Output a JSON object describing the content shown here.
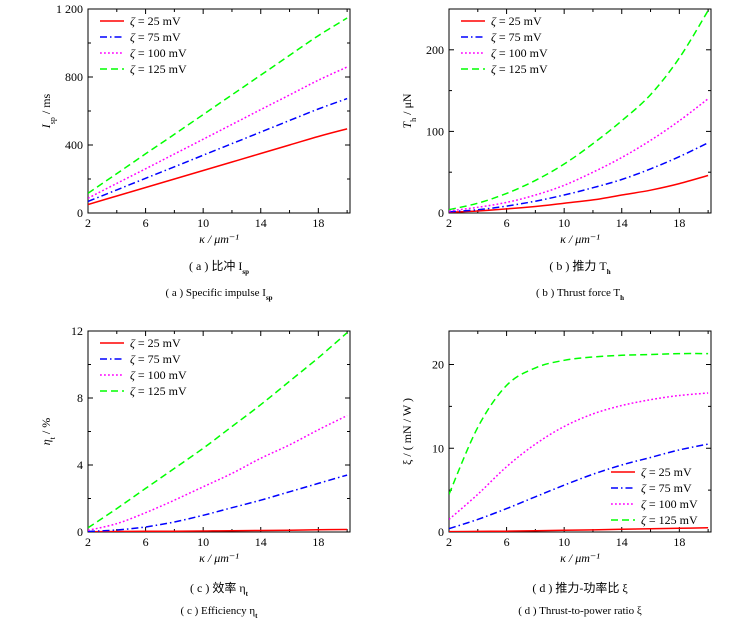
{
  "chart_data": [
    {
      "type": "line",
      "x": [
        2,
        4,
        6,
        8,
        10,
        12,
        14,
        16,
        18,
        20
      ],
      "xlim": [
        2,
        20.2
      ],
      "ylim": [
        0,
        1200
      ],
      "xticks": [
        "2",
        "6",
        "10",
        "14",
        "18"
      ],
      "yticks": [
        "0",
        "400",
        "800",
        "1 200"
      ],
      "xlabel": "κ / μm⁻¹",
      "ylabel": "I_sp / ms",
      "legend": "top-left",
      "grid": false,
      "caption_cn": "( a ) 比冲 I_sp",
      "caption_en": "( a ) Specific impulse I_sp",
      "series": [
        {
          "name": "ζ = 25 mV",
          "color": "#ff0000",
          "style": "solid",
          "values": [
            50,
            100,
            150,
            200,
            250,
            300,
            350,
            400,
            450,
            495
          ]
        },
        {
          "name": "ζ = 75 mV",
          "color": "#0000ff",
          "style": "dashdot",
          "values": [
            68,
            136,
            204,
            272,
            340,
            408,
            476,
            544,
            612,
            673
          ]
        },
        {
          "name": "ζ = 100 mV",
          "color": "#ff00ff",
          "style": "dotted",
          "values": [
            87,
            174,
            260,
            347,
            434,
            521,
            608,
            694,
            781,
            859
          ]
        },
        {
          "name": "ζ = 125 mV",
          "color": "#00ff00",
          "style": "dashed",
          "values": [
            116,
            232,
            348,
            463,
            579,
            695,
            811,
            927,
            1043,
            1147
          ]
        }
      ]
    },
    {
      "type": "line",
      "x": [
        2,
        4,
        6,
        8,
        10,
        12,
        14,
        16,
        18,
        20
      ],
      "xlim": [
        2,
        20.2
      ],
      "ylim": [
        0,
        250
      ],
      "xticks": [
        "2",
        "6",
        "10",
        "14",
        "18"
      ],
      "yticks": [
        "0",
        "100",
        "200"
      ],
      "xlabel": "κ / μm⁻¹",
      "ylabel": "T_h / μN",
      "legend": "top-left",
      "grid": false,
      "caption_cn": "( b ) 推力 T_h",
      "caption_en": "( b ) Thrust force T_h",
      "series": [
        {
          "name": "ζ = 25 mV",
          "color": "#ff0000",
          "style": "solid",
          "values": [
            1,
            2.5,
            5,
            8,
            12,
            16,
            22,
            28,
            36,
            46
          ]
        },
        {
          "name": "ζ = 75 mV",
          "color": "#0000ff",
          "style": "dashdot",
          "values": [
            1.5,
            4,
            8.5,
            14.5,
            22,
            31,
            41,
            54,
            69,
            86
          ]
        },
        {
          "name": "ζ = 100 mV",
          "color": "#ff00ff",
          "style": "dotted",
          "values": [
            2.5,
            7,
            13,
            22,
            34,
            50,
            68,
            89,
            113,
            140
          ]
        },
        {
          "name": "ζ = 125 mV",
          "color": "#00ff00",
          "style": "dashed",
          "values": [
            4,
            12,
            24,
            40,
            60,
            85,
            113,
            145,
            190,
            248
          ]
        }
      ]
    },
    {
      "type": "line",
      "x": [
        2,
        4,
        6,
        8,
        10,
        12,
        14,
        16,
        18,
        20
      ],
      "xlim": [
        2,
        20.2
      ],
      "ylim": [
        0,
        12
      ],
      "xticks": [
        "2",
        "6",
        "10",
        "14",
        "18"
      ],
      "yticks": [
        "0",
        "4",
        "8",
        "12"
      ],
      "xlabel": "κ / μm⁻¹",
      "ylabel": "η_t / %",
      "legend": "top-left",
      "grid": false,
      "caption_cn": "( c ) 效率 η_t",
      "caption_en": "( c ) Efficiency η_t",
      "series": [
        {
          "name": "ζ = 25 mV",
          "color": "#ff0000",
          "style": "solid",
          "values": [
            0.02,
            0.03,
            0.04,
            0.05,
            0.06,
            0.08,
            0.09,
            0.11,
            0.13,
            0.15
          ]
        },
        {
          "name": "ζ = 75 mV",
          "color": "#0000ff",
          "style": "dashdot",
          "values": [
            0.03,
            0.12,
            0.3,
            0.6,
            1.0,
            1.45,
            1.9,
            2.4,
            2.9,
            3.4
          ]
        },
        {
          "name": "ζ = 100 mV",
          "color": "#ff00ff",
          "style": "dotted",
          "values": [
            0.1,
            0.5,
            1.15,
            1.9,
            2.7,
            3.5,
            4.4,
            5.2,
            6.1,
            6.95
          ]
        },
        {
          "name": "ζ = 125 mV",
          "color": "#00ff00",
          "style": "dashed",
          "values": [
            0.25,
            1.4,
            2.6,
            3.8,
            5.0,
            6.3,
            7.6,
            9.0,
            10.4,
            11.9
          ]
        }
      ]
    },
    {
      "type": "line",
      "x": [
        2,
        4,
        6,
        8,
        10,
        12,
        14,
        16,
        18,
        20
      ],
      "xlim": [
        2,
        20.2
      ],
      "ylim": [
        0,
        24
      ],
      "xticks": [
        "2",
        "6",
        "10",
        "14",
        "18"
      ],
      "yticks": [
        "0",
        "10",
        "20"
      ],
      "xlabel": "κ / μm⁻¹",
      "ylabel": "ξ / ( mN / W )",
      "legend": "bottom-right",
      "grid": false,
      "caption_cn": "( d ) 推力-功率比 ξ",
      "caption_en": "( d ) Thrust-to-power ratio ξ",
      "series": [
        {
          "name": "ζ = 25 mV",
          "color": "#ff0000",
          "style": "solid",
          "values": [
            0.05,
            0.07,
            0.1,
            0.15,
            0.2,
            0.25,
            0.32,
            0.38,
            0.44,
            0.5
          ]
        },
        {
          "name": "ζ = 75 mV",
          "color": "#0000ff",
          "style": "dashdot",
          "values": [
            0.4,
            1.5,
            2.8,
            4.2,
            5.6,
            6.9,
            8.0,
            8.9,
            9.8,
            10.5
          ]
        },
        {
          "name": "ζ = 100 mV",
          "color": "#ff00ff",
          "style": "dotted",
          "values": [
            1.5,
            4.5,
            7.8,
            10.5,
            12.6,
            14.1,
            15.1,
            15.8,
            16.3,
            16.6
          ]
        },
        {
          "name": "ζ = 125 mV",
          "color": "#00ff00",
          "style": "dashed",
          "values": [
            4.5,
            12.5,
            17.5,
            19.6,
            20.5,
            20.9,
            21.1,
            21.2,
            21.3,
            21.3
          ]
        }
      ]
    }
  ]
}
